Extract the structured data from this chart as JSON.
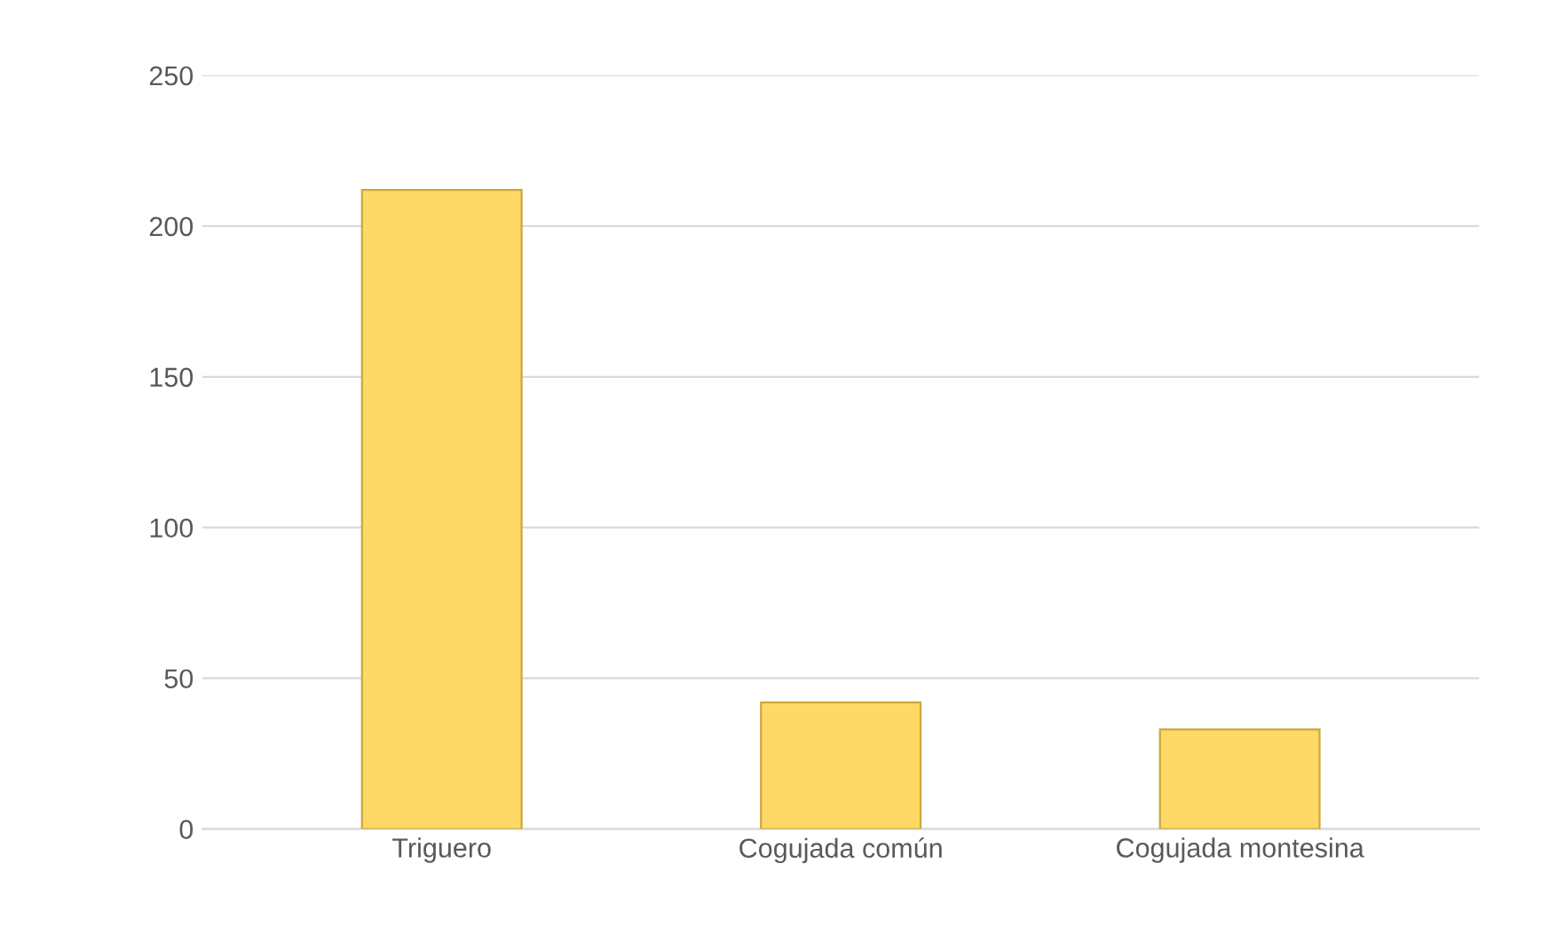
{
  "chart_data": {
    "type": "bar",
    "categories": [
      "Triguero",
      "Cogujada común",
      "Cogujada montesina"
    ],
    "values": [
      212,
      42,
      33
    ],
    "color": "#ffd966",
    "ylim": [
      0,
      250
    ],
    "yticks": [
      0,
      50,
      100,
      150,
      200,
      250
    ],
    "grid": "y"
  }
}
